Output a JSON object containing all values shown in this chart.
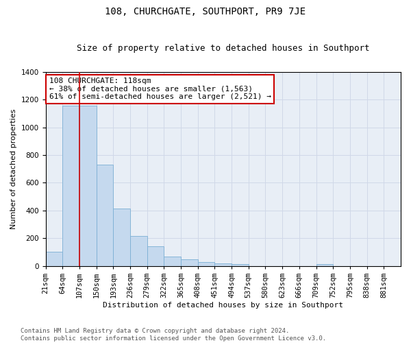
{
  "title": "108, CHURCHGATE, SOUTHPORT, PR9 7JE",
  "subtitle": "Size of property relative to detached houses in Southport",
  "xlabel": "Distribution of detached houses by size in Southport",
  "ylabel": "Number of detached properties",
  "categories": [
    "21sqm",
    "64sqm",
    "107sqm",
    "150sqm",
    "193sqm",
    "236sqm",
    "279sqm",
    "322sqm",
    "365sqm",
    "408sqm",
    "451sqm",
    "494sqm",
    "537sqm",
    "580sqm",
    "623sqm",
    "666sqm",
    "709sqm",
    "752sqm",
    "795sqm",
    "838sqm",
    "881sqm"
  ],
  "bar_heights": [
    105,
    1155,
    1155,
    730,
    415,
    215,
    145,
    70,
    48,
    30,
    18,
    15,
    0,
    0,
    0,
    0,
    15,
    0,
    0,
    0,
    0
  ],
  "annotation_text_line1": "108 CHURCHGATE: 118sqm",
  "annotation_text_line2": "← 38% of detached houses are smaller (1,563)",
  "annotation_text_line3": "61% of semi-detached houses are larger (2,521) →",
  "bar_color": "#c5d9ee",
  "bar_edge_color": "#7bafd4",
  "annotation_box_color": "#ffffff",
  "annotation_box_edge_color": "#cc0000",
  "vline_color": "#cc0000",
  "grid_color": "#d0d8e8",
  "background_color": "#e8eef6",
  "footer_line1": "Contains HM Land Registry data © Crown copyright and database right 2024.",
  "footer_line2": "Contains public sector information licensed under the Open Government Licence v3.0.",
  "ylim": [
    0,
    1400
  ],
  "yticks": [
    0,
    200,
    400,
    600,
    800,
    1000,
    1200,
    1400
  ],
  "title_fontsize": 10,
  "subtitle_fontsize": 9,
  "axis_label_fontsize": 8,
  "tick_fontsize": 7.5,
  "annotation_fontsize": 8,
  "footer_fontsize": 6.5,
  "vline_x": 2
}
